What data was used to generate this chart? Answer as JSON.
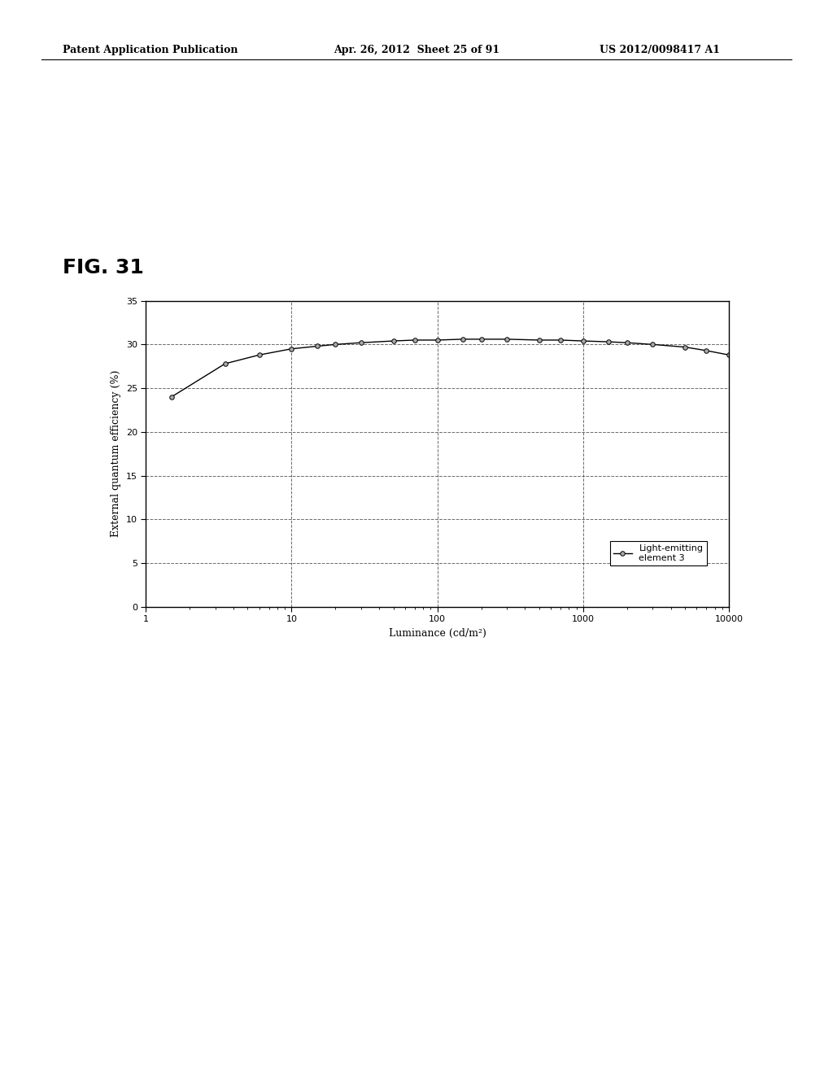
{
  "title_fig": "FIG. 31",
  "header_left": "Patent Application Publication",
  "header_mid": "Apr. 26, 2012  Sheet 25 of 91",
  "header_right": "US 2012/0098417 A1",
  "xlabel": "Luminance (cd/m²)",
  "ylabel": "External quantum efficiency (%)",
  "legend_label": "Light-emitting\nelement 3",
  "xlim_log": [
    1,
    10000
  ],
  "ylim": [
    0,
    35
  ],
  "yticks": [
    0,
    5,
    10,
    15,
    20,
    25,
    30,
    35
  ],
  "x_data": [
    1.5,
    3.5,
    6,
    10,
    15,
    20,
    30,
    50,
    70,
    100,
    150,
    200,
    300,
    500,
    700,
    1000,
    1500,
    2000,
    3000,
    5000,
    7000,
    10000
  ],
  "y_data": [
    24.0,
    27.8,
    28.8,
    29.5,
    29.8,
    30.0,
    30.2,
    30.4,
    30.5,
    30.5,
    30.6,
    30.6,
    30.6,
    30.5,
    30.5,
    30.4,
    30.3,
    30.2,
    30.0,
    29.7,
    29.3,
    28.8
  ],
  "line_color": "#000000",
  "marker_color": "#aaaaaa",
  "background_color": "#ffffff",
  "fig_label_fontsize": 18,
  "axis_label_fontsize": 9,
  "tick_fontsize": 8,
  "legend_fontsize": 8,
  "header_fontsize": 9
}
